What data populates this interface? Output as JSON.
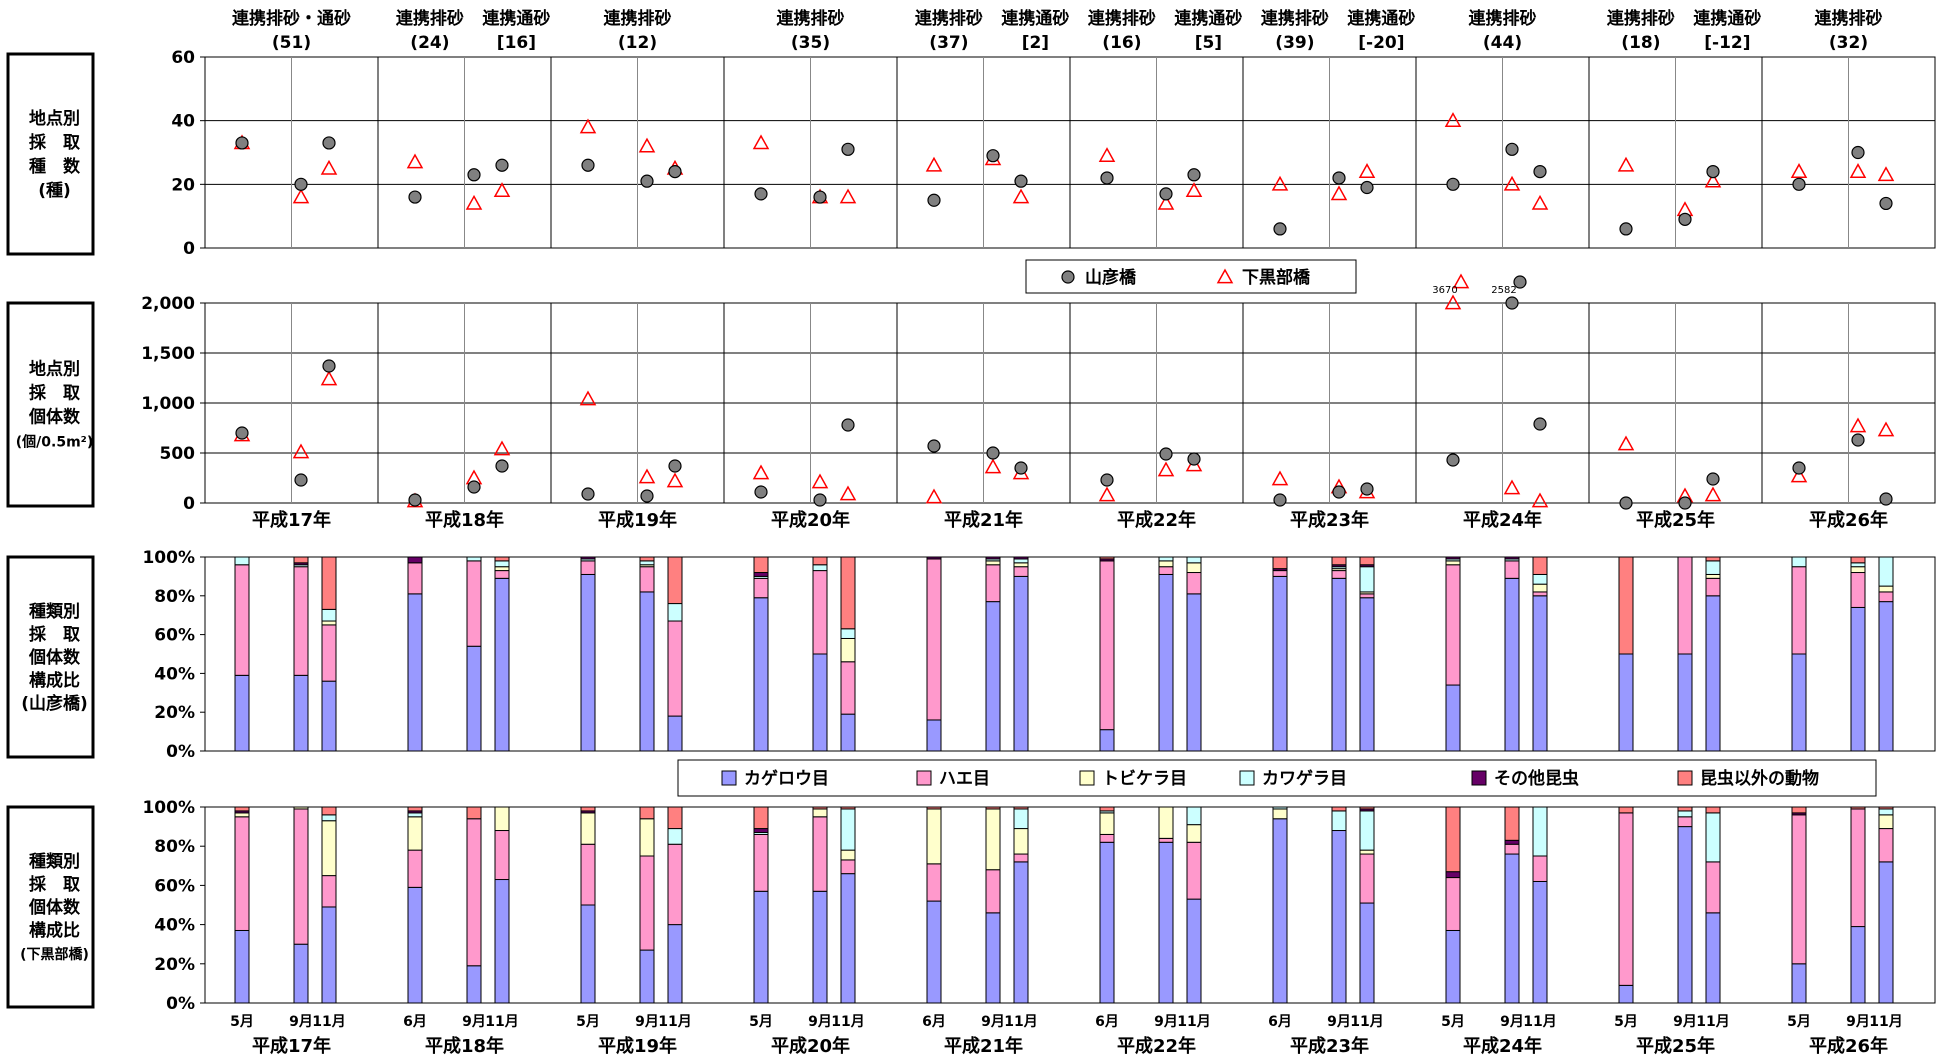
{
  "chart_data": {
    "type": "multi-panel",
    "years": [
      "平成17年",
      "平成18年",
      "平成19年",
      "平成20年",
      "平成21年",
      "平成22年",
      "平成23年",
      "平成24年",
      "平成25年",
      "平成26年"
    ],
    "top_annotations": [
      {
        "l1": [
          "連携排砂・通砂"
        ],
        "l2": [
          "(51)"
        ]
      },
      {
        "l1": [
          "連携排砂",
          "連携通砂"
        ],
        "l2": [
          "(24)",
          "[16]"
        ]
      },
      {
        "l1": [
          "連携排砂"
        ],
        "l2": [
          "(12)"
        ]
      },
      {
        "l1": [
          "連携排砂"
        ],
        "l2": [
          "(35)"
        ]
      },
      {
        "l1": [
          "連携排砂",
          "連携通砂"
        ],
        "l2": [
          "(37)",
          "[2]"
        ]
      },
      {
        "l1": [
          "連携排砂",
          "連携通砂"
        ],
        "l2": [
          "(16)",
          "[5]"
        ]
      },
      {
        "l1": [
          "連携排砂",
          "連携通砂"
        ],
        "l2": [
          "(39)",
          "[-20]"
        ]
      },
      {
        "l1": [
          "連携排砂"
        ],
        "l2": [
          "(44)"
        ]
      },
      {
        "l1": [
          "連携排砂",
          "連携通砂"
        ],
        "l2": [
          "(18)",
          "[-12]"
        ]
      },
      {
        "l1": [
          "連携排砂"
        ],
        "l2": [
          "(32)"
        ]
      }
    ],
    "month_labels": [
      [
        "5月",
        "9月",
        "11月"
      ],
      [
        "6月",
        "9月",
        "11月"
      ],
      [
        "5月",
        "9月",
        "11月"
      ],
      [
        "5月",
        "9月",
        "11月"
      ],
      [
        "6月",
        "9月",
        "11月"
      ],
      [
        "6月",
        "9月",
        "11月"
      ],
      [
        "6月",
        "9月",
        "11月"
      ],
      [
        "5月",
        "9月",
        "11月"
      ],
      [
        "5月",
        "9月",
        "11月"
      ],
      [
        "5月",
        "9月",
        "11月"
      ]
    ],
    "panels": {
      "species": {
        "title": [
          "地点別",
          "採　取",
          "種　数",
          "(種)"
        ],
        "type": "scatter",
        "ylim": [
          0,
          60
        ],
        "yticks": [
          "0",
          "20",
          "40",
          "60"
        ],
        "yvals": [
          0,
          20,
          40,
          60
        ],
        "yamahiko": [
          [
            33,
            20,
            33
          ],
          [
            16,
            23,
            26
          ],
          [
            26,
            21,
            24
          ],
          [
            17,
            16,
            31
          ],
          [
            15,
            29,
            21
          ],
          [
            22,
            17,
            23
          ],
          [
            6,
            22,
            19
          ],
          [
            20,
            31,
            24
          ],
          [
            6,
            9,
            24
          ],
          [
            20,
            30,
            14
          ]
        ],
        "shimokurobe": [
          [
            33,
            16,
            25
          ],
          [
            27,
            14,
            18
          ],
          [
            38,
            32,
            25
          ],
          [
            33,
            16,
            16
          ],
          [
            26,
            28,
            16
          ],
          [
            29,
            14,
            18
          ],
          [
            20,
            17,
            24
          ],
          [
            40,
            20,
            14
          ],
          [
            26,
            12,
            21
          ],
          [
            24,
            24,
            23
          ]
        ]
      },
      "individuals": {
        "title": [
          "地点別",
          "採　取",
          "個体数",
          "(個/0.5m²)"
        ],
        "type": "scatter",
        "ylim": [
          0,
          2000
        ],
        "yticks": [
          "0",
          "500",
          "1,000",
          "1,500",
          "2,000"
        ],
        "yvals": [
          0,
          500,
          1000,
          1500,
          2000
        ],
        "yamahiko": [
          [
            700,
            230,
            1370
          ],
          [
            30,
            160,
            370
          ],
          [
            90,
            70,
            370
          ],
          [
            110,
            30,
            780
          ],
          [
            570,
            500,
            350
          ],
          [
            230,
            490,
            440
          ],
          [
            30,
            110,
            140
          ],
          [
            430,
            3670,
            790
          ],
          [
            0,
            0,
            240
          ],
          [
            350,
            630,
            40
          ]
        ],
        "shimokurobe": [
          [
            680,
            510,
            1240
          ],
          [
            20,
            250,
            540
          ],
          [
            1040,
            260,
            220
          ],
          [
            300,
            210,
            90
          ],
          [
            60,
            360,
            300
          ],
          [
            80,
            330,
            380
          ],
          [
            240,
            160,
            110
          ],
          [
            2582,
            150,
            20
          ],
          [
            590,
            70,
            80
          ],
          [
            270,
            770,
            730
          ]
        ],
        "overflow_labels": [
          "3670",
          "2582"
        ]
      },
      "comp_yamahiko": {
        "title": [
          "種類別",
          "採　取",
          "個体数",
          "構成比",
          "(山彦橋)"
        ],
        "type": "stacked-bar",
        "ylim": [
          0,
          100
        ],
        "yticks": [
          "0%",
          "20%",
          "40%",
          "60%",
          "80%",
          "100%"
        ],
        "yvals": [
          0,
          20,
          40,
          60,
          80,
          100
        ],
        "values": [
          [
            [
              39,
              57,
              0,
              4,
              0,
              0
            ],
            [
              39,
              56,
              0,
              1,
              1,
              3
            ],
            [
              36,
              29,
              2,
              6,
              0,
              27
            ]
          ],
          [
            [
              81,
              16,
              0,
              0,
              3,
              0
            ],
            [
              54,
              44,
              0,
              2,
              0,
              0
            ],
            [
              89,
              4,
              2,
              3,
              0,
              2
            ]
          ],
          [
            [
              91,
              7,
              0,
              1,
              1,
              0
            ],
            [
              82,
              13,
              1,
              2,
              0,
              2
            ],
            [
              18,
              49,
              0,
              9,
              0,
              24
            ]
          ],
          [
            [
              79,
              10,
              0,
              1,
              2,
              8
            ],
            [
              50,
              43,
              0,
              3,
              0,
              4
            ],
            [
              19,
              27,
              12,
              5,
              0,
              37
            ]
          ],
          [
            [
              16,
              83,
              0,
              0,
              1,
              0
            ],
            [
              77,
              19,
              2,
              1,
              1,
              0
            ],
            [
              90,
              5,
              2,
              2,
              1,
              0
            ]
          ],
          [
            [
              11,
              87,
              0,
              0,
              1,
              1
            ],
            [
              91,
              4,
              3,
              2,
              0,
              0
            ],
            [
              81,
              11,
              5,
              3,
              0,
              0
            ]
          ],
          [
            [
              90,
              3,
              0,
              0,
              1,
              6
            ],
            [
              89,
              4,
              1,
              1,
              1,
              4
            ],
            [
              79,
              2,
              1,
              13,
              1,
              4
            ]
          ],
          [
            [
              34,
              62,
              2,
              1,
              1,
              0
            ],
            [
              89,
              9,
              0,
              1,
              1,
              0
            ],
            [
              80,
              2,
              4,
              5,
              0,
              9
            ]
          ],
          [
            [
              50,
              0,
              0,
              0,
              0,
              50
            ],
            [
              50,
              50,
              0,
              0,
              0,
              0
            ],
            [
              80,
              9,
              2,
              7,
              0,
              2
            ]
          ],
          [
            [
              50,
              45,
              0,
              5,
              0,
              0
            ],
            [
              74,
              18,
              3,
              2,
              0,
              3
            ],
            [
              77,
              5,
              3,
              15,
              0,
              0
            ]
          ]
        ]
      },
      "comp_shimokurobe": {
        "title": [
          "種類別",
          "採　取",
          "個体数",
          "構成比",
          "(下黒部橋)"
        ],
        "type": "stacked-bar",
        "ylim": [
          0,
          100
        ],
        "yticks": [
          "0%",
          "20%",
          "40%",
          "60%",
          "80%",
          "100%"
        ],
        "yvals": [
          0,
          20,
          40,
          60,
          80,
          100
        ],
        "values": [
          [
            [
              37,
              58,
              2,
              0,
              1,
              2
            ],
            [
              30,
              69,
              1,
              0,
              0,
              0
            ],
            [
              49,
              16,
              28,
              3,
              0,
              4
            ]
          ],
          [
            [
              59,
              19,
              17,
              2,
              1,
              2
            ],
            [
              19,
              75,
              0,
              0,
              0,
              6
            ],
            [
              63,
              25,
              12,
              0,
              0,
              0
            ]
          ],
          [
            [
              50,
              31,
              16,
              0,
              1,
              2
            ],
            [
              27,
              48,
              19,
              0,
              0,
              6
            ],
            [
              40,
              41,
              0,
              8,
              0,
              11
            ]
          ],
          [
            [
              57,
              29,
              0,
              1,
              2,
              11
            ],
            [
              57,
              38,
              4,
              0,
              0,
              1
            ],
            [
              66,
              7,
              5,
              21,
              0,
              1
            ]
          ],
          [
            [
              52,
              19,
              28,
              0,
              0,
              1
            ],
            [
              46,
              22,
              31,
              0,
              0,
              1
            ],
            [
              72,
              4,
              13,
              10,
              0,
              1
            ]
          ],
          [
            [
              82,
              4,
              11,
              1,
              0,
              2
            ],
            [
              82,
              2,
              16,
              0,
              0,
              0
            ],
            [
              53,
              29,
              9,
              9,
              0,
              0
            ]
          ],
          [
            [
              94,
              0,
              5,
              1,
              0,
              0
            ],
            [
              88,
              0,
              0,
              10,
              0,
              2
            ],
            [
              51,
              25,
              2,
              20,
              1,
              1
            ]
          ],
          [
            [
              37,
              27,
              0,
              0,
              3,
              33
            ],
            [
              76,
              5,
              0,
              0,
              2,
              17
            ],
            [
              62,
              13,
              0,
              25,
              0,
              0
            ]
          ],
          [
            [
              9,
              88,
              0,
              0,
              0,
              3
            ],
            [
              90,
              5,
              0,
              3,
              0,
              2
            ],
            [
              46,
              26,
              0,
              25,
              0,
              3
            ]
          ],
          [
            [
              20,
              76,
              0,
              0,
              1,
              3
            ],
            [
              39,
              60,
              0,
              0,
              0,
              1
            ],
            [
              72,
              17,
              7,
              3,
              0,
              1
            ]
          ]
        ]
      }
    },
    "scatter_legend": [
      {
        "label": "山彦橋",
        "marker": "circle",
        "color": "#808080"
      },
      {
        "label": "下黒部橋",
        "marker": "triangle",
        "color": "#ff0000"
      }
    ],
    "bar_legend": [
      {
        "label": "カゲロウ目",
        "color": "#9999ff"
      },
      {
        "label": "ハエ目",
        "color": "#ff99cc"
      },
      {
        "label": "トビケラ目",
        "color": "#ffffcc"
      },
      {
        "label": "カワゲラ目",
        "color": "#ccffff"
      },
      {
        "label": "その他昆虫",
        "color": "#660066"
      },
      {
        "label": "昆虫以外の動物",
        "color": "#ff8080"
      }
    ]
  }
}
